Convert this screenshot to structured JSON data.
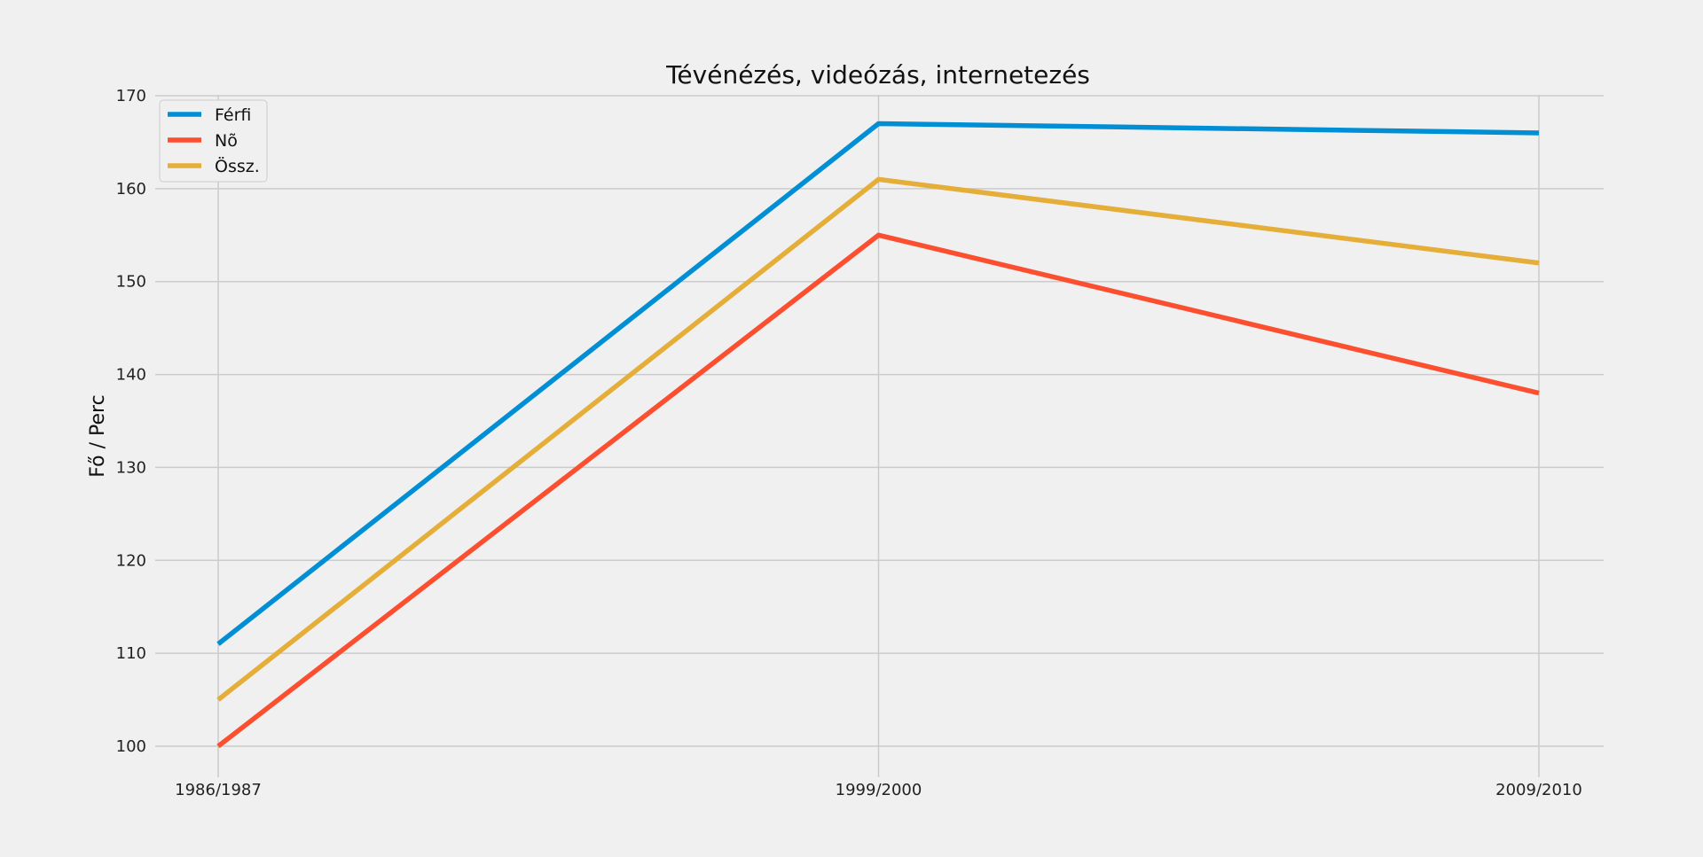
{
  "chart_data": {
    "type": "line",
    "title": "Tévénézés, videózás, internetezés",
    "xlabel": "",
    "ylabel": "Fő / Perc",
    "categories": [
      "1986/1987",
      "1999/2000",
      "2009/2010"
    ],
    "series": [
      {
        "name": "Férfi",
        "values": [
          111,
          167,
          166
        ],
        "color": "#008fd5"
      },
      {
        "name": "Nõ",
        "values": [
          100,
          155,
          138
        ],
        "color": "#fc4f30"
      },
      {
        "name": "Össz.",
        "values": [
          105,
          161,
          152
        ],
        "color": "#e5ae38"
      }
    ],
    "ylim": [
      98,
      170
    ],
    "yticks": [
      100,
      110,
      120,
      130,
      140,
      150,
      160,
      170
    ],
    "grid": true,
    "legend_position": "top-left"
  }
}
